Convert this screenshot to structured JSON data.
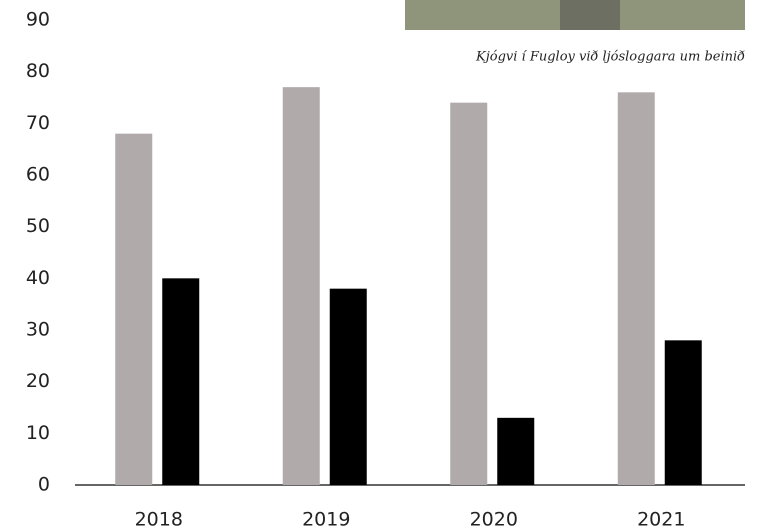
{
  "chart_data": {
    "type": "bar",
    "annotation": "Kjógvi í Fugloy við ljósloggara um beinið",
    "categories": [
      "2018",
      "2019",
      "2020",
      "2021"
    ],
    "series": [
      {
        "color": "#b0aaaa",
        "values": [
          68,
          77,
          74,
          76
        ]
      },
      {
        "color": "#000000",
        "values": [
          40,
          38,
          13,
          28
        ]
      }
    ],
    "ylim": [
      0,
      90
    ],
    "yticks": [
      0,
      10,
      20,
      30,
      40,
      50,
      60,
      70,
      80,
      90
    ],
    "grid": false
  }
}
